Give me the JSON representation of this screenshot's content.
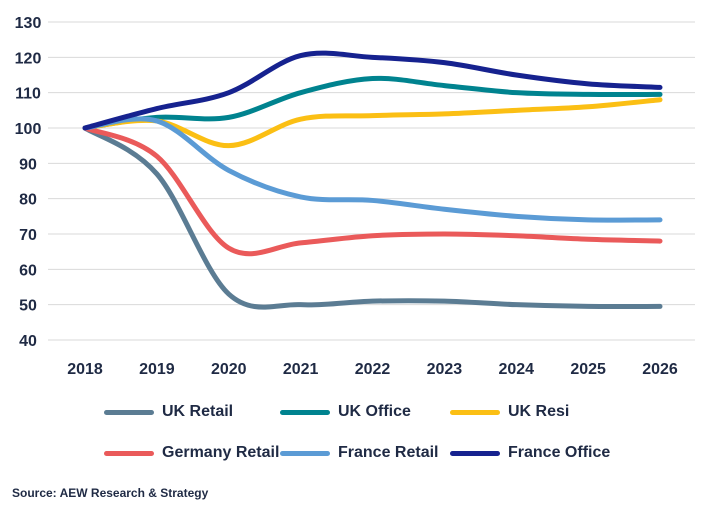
{
  "chart_data": {
    "type": "line",
    "categories": [
      "2018",
      "2019",
      "2020",
      "2021",
      "2022",
      "2023",
      "2024",
      "2025",
      "2026"
    ],
    "ylim": [
      40,
      130
    ],
    "yticks": [
      130,
      120,
      110,
      100,
      90,
      80,
      70,
      60,
      50,
      40
    ],
    "grid": "horizontal",
    "legend_position": "bottom",
    "series": [
      {
        "name": "UK Retail",
        "color": "#5b7c93",
        "values": [
          100,
          87,
          53,
          50,
          51,
          51,
          50,
          49.5,
          49.5
        ]
      },
      {
        "name": "UK Office",
        "color": "#00838f",
        "values": [
          100,
          103,
          103,
          110,
          114,
          112,
          110,
          109.5,
          109.5
        ]
      },
      {
        "name": "UK Resi",
        "color": "#fbbf14",
        "values": [
          100,
          102,
          95,
          102.5,
          103.5,
          104,
          105,
          106,
          108
        ]
      },
      {
        "name": "Germany Retail",
        "color": "#ea5a5a",
        "values": [
          100,
          92,
          66,
          67.5,
          69.5,
          70,
          69.5,
          68.5,
          68
        ]
      },
      {
        "name": "France Retail",
        "color": "#5b9bd5",
        "values": [
          100,
          102,
          88,
          80.5,
          79.5,
          77,
          75,
          74,
          74
        ]
      },
      {
        "name": "France Office",
        "color": "#16228f",
        "values": [
          100,
          105.5,
          110,
          120.5,
          120,
          118.5,
          115,
          112.5,
          111.5
        ]
      }
    ]
  },
  "source": "Source: AEW Research & Strategy"
}
